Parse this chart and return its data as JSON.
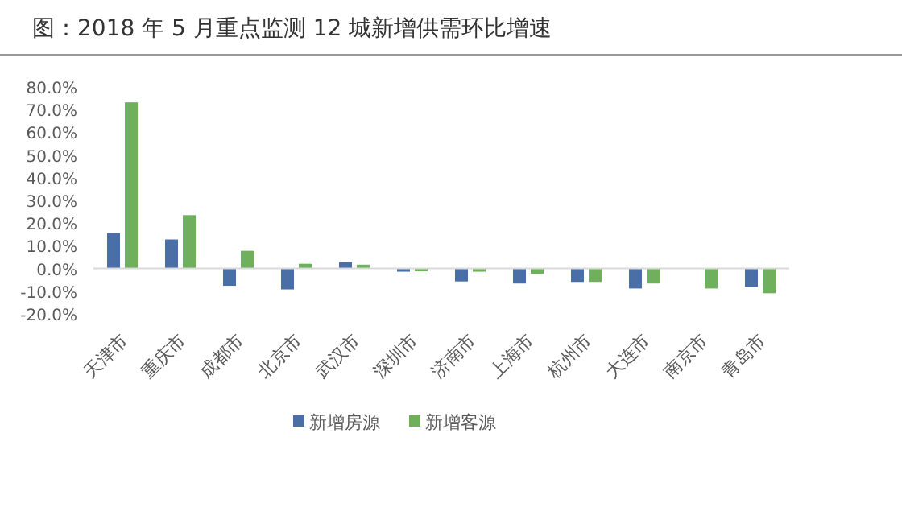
{
  "chart_data": {
    "type": "bar",
    "title": "图：2018 年 5 月重点监测 12 城新增供需环比增速",
    "categories": [
      "天津市",
      "重庆市",
      "成都市",
      "北京市",
      "武汉市",
      "深圳市",
      "济南市",
      "上海市",
      "杭州市",
      "大连市",
      "南京市",
      "青岛市"
    ],
    "series": [
      {
        "name": "新增房源",
        "color": "#4a6ea6",
        "values": [
          15.6,
          12.8,
          -7.6,
          -9.2,
          2.8,
          -1.4,
          -5.7,
          -6.6,
          -5.9,
          -8.8,
          null,
          -8.1
        ]
      },
      {
        "name": "新增客源",
        "color": "#6eb05c",
        "values": [
          73.2,
          23.5,
          7.8,
          2.1,
          1.7,
          -1.2,
          -1.4,
          -2.4,
          -5.9,
          -6.6,
          -8.8,
          -10.9
        ]
      }
    ],
    "ylim": [
      -20,
      80
    ],
    "yticks": [
      {
        "value": -20,
        "label": "-20.0%"
      },
      {
        "value": -10,
        "label": "-10.0%"
      },
      {
        "value": 0,
        "label": "0.0%"
      },
      {
        "value": 10,
        "label": "10.0%"
      },
      {
        "value": 20,
        "label": "20.0%"
      },
      {
        "value": 30,
        "label": "30.0%"
      },
      {
        "value": 40,
        "label": "40.0%"
      },
      {
        "value": 50,
        "label": "50.0%"
      },
      {
        "value": 60,
        "label": "60.0%"
      },
      {
        "value": 70,
        "label": "70.0%"
      },
      {
        "value": 80,
        "label": "80.0%"
      }
    ],
    "legend": "bottom"
  }
}
